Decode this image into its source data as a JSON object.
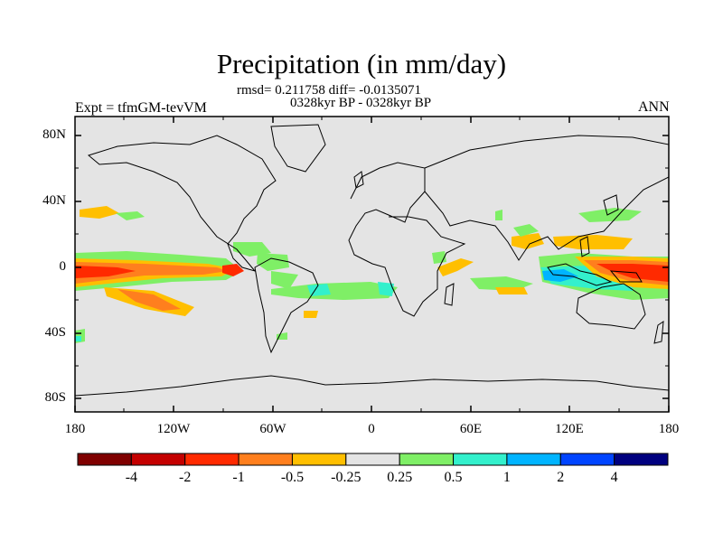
{
  "title": "Precipitation (in mm/day)",
  "stats": "rmsd= 0.211758 diff= -0.0135071",
  "period": "0328kyr BP - 0328kyr BP",
  "experiment": "Expt = tfmGM-tevVM",
  "season": "ANN",
  "lat_ticks": [
    "80N",
    "40N",
    "0",
    "40S",
    "80S"
  ],
  "lon_ticks": [
    "180",
    "120W",
    "60W",
    "0",
    "60E",
    "120E",
    "180"
  ],
  "colorbar": {
    "labels": [
      "-4",
      "-2",
      "-1",
      "-0.5",
      "-0.25",
      "0.25",
      "0.5",
      "1",
      "2",
      "4"
    ],
    "colors": [
      "#7f0000",
      "#c40000",
      "#ff2a00",
      "#ff7f1e",
      "#ffbf00",
      "#e4e4e4",
      "#7fef66",
      "#33f0cc",
      "#00b4ff",
      "#0044ff",
      "#00007f"
    ]
  },
  "colors": {
    "ocean": "#e4e4e4",
    "coast": "#000000"
  }
}
